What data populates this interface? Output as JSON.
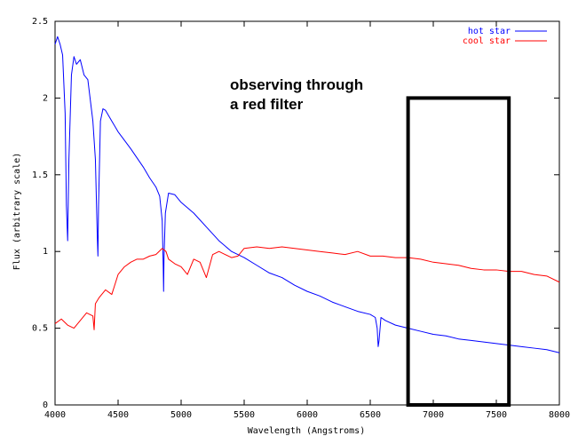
{
  "chart_data": {
    "type": "line",
    "xlabel": "Wavelength (Angstroms)",
    "ylabel": "Flux (arbitrary scale)",
    "xlim": [
      4000,
      8000
    ],
    "ylim": [
      0,
      2.5
    ],
    "xticks": [
      4000,
      4500,
      5000,
      5500,
      6000,
      6500,
      7000,
      7500,
      8000
    ],
    "yticks": [
      0,
      0.5,
      1,
      1.5,
      2,
      2.5
    ],
    "xtick_labels": [
      "4000",
      "4500",
      "5000",
      "5500",
      "6000",
      "6500",
      "7000",
      "7500",
      "8000"
    ],
    "ytick_labels": [
      "0",
      "0.5",
      "1",
      "1.5",
      "2",
      "2.5"
    ],
    "legend_position": "top-right",
    "annotation": {
      "lines": [
        "observing through",
        "a red filter"
      ]
    },
    "filter_box": {
      "x_range": [
        6800,
        7600
      ],
      "y_range": [
        0,
        2.0
      ],
      "color": "#000000"
    },
    "series": [
      {
        "name": "hot star",
        "color": "#0000ff",
        "x": [
          4000,
          4020,
          4040,
          4060,
          4080,
          4090,
          4100,
          4110,
          4130,
          4150,
          4170,
          4200,
          4230,
          4260,
          4300,
          4320,
          4335,
          4340,
          4345,
          4360,
          4380,
          4400,
          4450,
          4500,
          4600,
          4700,
          4750,
          4800,
          4830,
          4850,
          4858,
          4861,
          4864,
          4875,
          4900,
          4950,
          5000,
          5100,
          5200,
          5300,
          5400,
          5500,
          5600,
          5700,
          5800,
          5900,
          6000,
          6100,
          6200,
          6300,
          6400,
          6500,
          6540,
          6555,
          6563,
          6570,
          6585,
          6620,
          6700,
          6800,
          6900,
          7000,
          7100,
          7200,
          7300,
          7400,
          7500,
          7600,
          7700,
          7800,
          7900,
          8000
        ],
        "y": [
          2.35,
          2.4,
          2.35,
          2.28,
          1.9,
          1.3,
          1.07,
          1.6,
          2.15,
          2.27,
          2.22,
          2.25,
          2.15,
          2.12,
          1.85,
          1.6,
          1.1,
          0.97,
          1.3,
          1.85,
          1.93,
          1.92,
          1.85,
          1.78,
          1.67,
          1.55,
          1.48,
          1.42,
          1.36,
          1.2,
          0.9,
          0.74,
          0.95,
          1.25,
          1.38,
          1.37,
          1.32,
          1.25,
          1.16,
          1.07,
          1.0,
          0.96,
          0.91,
          0.86,
          0.83,
          0.78,
          0.74,
          0.71,
          0.67,
          0.64,
          0.61,
          0.59,
          0.57,
          0.5,
          0.38,
          0.42,
          0.57,
          0.55,
          0.52,
          0.5,
          0.48,
          0.46,
          0.45,
          0.43,
          0.42,
          0.41,
          0.4,
          0.39,
          0.38,
          0.37,
          0.36,
          0.34
        ]
      },
      {
        "name": "cool star",
        "color": "#ff0000",
        "x": [
          4000,
          4050,
          4100,
          4150,
          4200,
          4250,
          4300,
          4310,
          4320,
          4350,
          4400,
          4450,
          4500,
          4550,
          4600,
          4650,
          4700,
          4750,
          4800,
          4850,
          4880,
          4900,
          4950,
          5000,
          5050,
          5100,
          5150,
          5200,
          5250,
          5300,
          5350,
          5400,
          5450,
          5500,
          5600,
          5700,
          5800,
          5900,
          6000,
          6100,
          6200,
          6300,
          6400,
          6500,
          6600,
          6700,
          6800,
          6900,
          7000,
          7100,
          7200,
          7300,
          7400,
          7500,
          7600,
          7700,
          7800,
          7900,
          8000
        ],
        "y": [
          0.53,
          0.56,
          0.52,
          0.5,
          0.55,
          0.6,
          0.58,
          0.49,
          0.66,
          0.7,
          0.75,
          0.72,
          0.85,
          0.9,
          0.93,
          0.95,
          0.95,
          0.97,
          0.98,
          1.02,
          1.0,
          0.95,
          0.92,
          0.9,
          0.85,
          0.95,
          0.93,
          0.83,
          0.98,
          1.0,
          0.98,
          0.96,
          0.97,
          1.02,
          1.03,
          1.02,
          1.03,
          1.02,
          1.01,
          1.0,
          0.99,
          0.98,
          1.0,
          0.97,
          0.97,
          0.96,
          0.96,
          0.95,
          0.93,
          0.92,
          0.91,
          0.89,
          0.88,
          0.88,
          0.87,
          0.87,
          0.85,
          0.84,
          0.8
        ]
      }
    ]
  }
}
